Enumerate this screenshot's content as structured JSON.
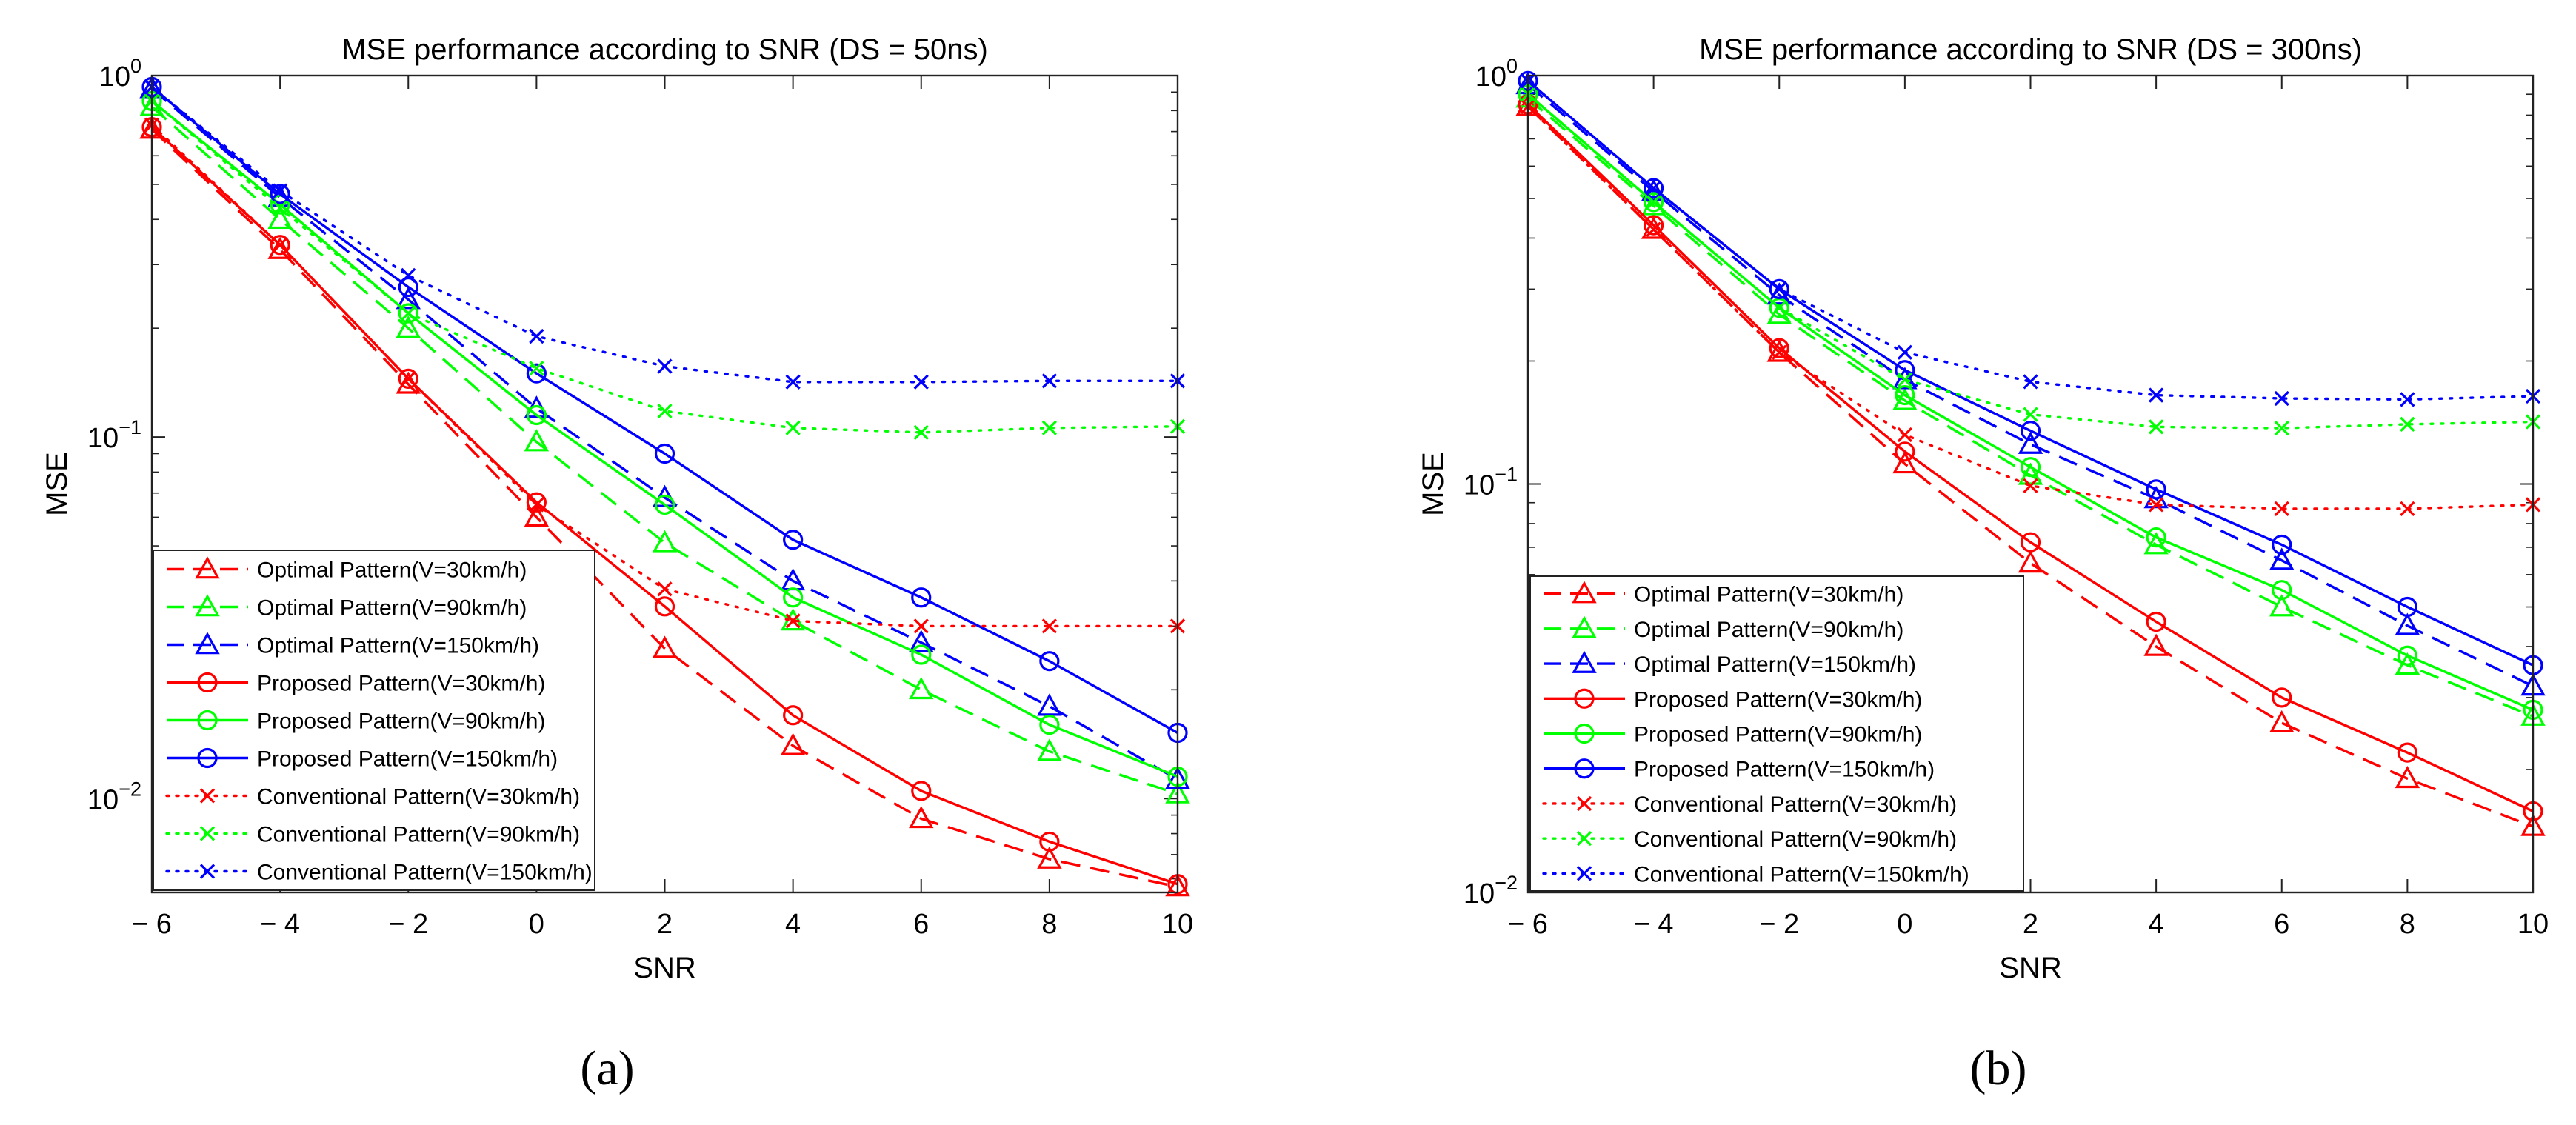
{
  "figure": {
    "caption_a": "(a)",
    "caption_b": "(b)"
  },
  "chart_data": [
    {
      "type": "line",
      "yscale": "log",
      "title": "MSE performance according to SNR (DS = 50ns)",
      "xlabel": "SNR",
      "ylabel": "MSE",
      "xlim": [
        -6,
        10
      ],
      "ylim": [
        0.0055,
        1
      ],
      "xticks": [
        -6,
        -4,
        -2,
        0,
        2,
        4,
        6,
        8,
        10
      ],
      "xtick_labels": [
        "− 6",
        "− 4",
        "− 2",
        "0",
        "2",
        "4",
        "6",
        "8",
        "10"
      ],
      "yticks": [
        {
          "value": 1,
          "base": "10",
          "exp": "0"
        },
        {
          "value": 0.1,
          "base": "10",
          "exp": "−1"
        },
        {
          "value": 0.01,
          "base": "10",
          "exp": "−2"
        }
      ],
      "legend_position": "bottom-left",
      "x": [
        -6,
        -4,
        -2,
        0,
        2,
        4,
        6,
        8,
        10
      ],
      "series": [
        {
          "name": "Optimal Pattern(V=30km/h)",
          "color": "#ff0000",
          "dash": "dashed",
          "marker": "triangle",
          "values": [
            0.71,
            0.33,
            0.14,
            0.06,
            0.026,
            0.014,
            0.0088,
            0.0068,
            0.0057
          ]
        },
        {
          "name": "Optimal Pattern(V=90km/h)",
          "color": "#00ff00",
          "dash": "dashed",
          "marker": "triangle",
          "values": [
            0.82,
            0.4,
            0.2,
            0.097,
            0.051,
            0.031,
            0.02,
            0.0135,
            0.0103
          ]
        },
        {
          "name": "Optimal Pattern(V=150km/h)",
          "color": "#0000ff",
          "dash": "dashed",
          "marker": "triangle",
          "values": [
            0.92,
            0.46,
            0.24,
            0.12,
            0.068,
            0.04,
            0.027,
            0.018,
            0.0113
          ]
        },
        {
          "name": "Proposed Pattern(V=30km/h)",
          "color": "#ff0000",
          "dash": "solid",
          "marker": "circle",
          "values": [
            0.72,
            0.34,
            0.145,
            0.066,
            0.034,
            0.017,
            0.0105,
            0.0076,
            0.0058
          ]
        },
        {
          "name": "Proposed Pattern(V=90km/h)",
          "color": "#00ff00",
          "dash": "solid",
          "marker": "circle",
          "values": [
            0.85,
            0.44,
            0.22,
            0.115,
            0.065,
            0.036,
            0.025,
            0.016,
            0.0115
          ]
        },
        {
          "name": "Proposed Pattern(V=150km/h)",
          "color": "#0000ff",
          "dash": "solid",
          "marker": "circle",
          "values": [
            0.93,
            0.47,
            0.26,
            0.15,
            0.09,
            0.052,
            0.036,
            0.024,
            0.0152
          ]
        },
        {
          "name": "Conventional Pattern(V=30km/h)",
          "color": "#ff0000",
          "dash": "dotted",
          "marker": "x",
          "values": [
            0.73,
            0.34,
            0.145,
            0.065,
            0.038,
            0.031,
            0.03,
            0.03,
            0.03
          ]
        },
        {
          "name": "Conventional Pattern(V=90km/h)",
          "color": "#00ff00",
          "dash": "dotted",
          "marker": "x",
          "values": [
            0.85,
            0.43,
            0.22,
            0.155,
            0.118,
            0.106,
            0.103,
            0.106,
            0.107
          ]
        },
        {
          "name": "Conventional Pattern(V=150km/h)",
          "color": "#0000ff",
          "dash": "dotted",
          "marker": "x",
          "values": [
            0.93,
            0.48,
            0.28,
            0.19,
            0.157,
            0.142,
            0.142,
            0.143,
            0.143
          ]
        }
      ]
    },
    {
      "type": "line",
      "yscale": "log",
      "title": "MSE performance according to SNR (DS = 300ns)",
      "xlabel": "SNR",
      "ylabel": "MSE",
      "xlim": [
        -6,
        10
      ],
      "ylim": [
        0.01,
        1
      ],
      "xticks": [
        -6,
        -4,
        -2,
        0,
        2,
        4,
        6,
        8,
        10
      ],
      "xtick_labels": [
        "− 6",
        "− 4",
        "− 2",
        "0",
        "2",
        "4",
        "6",
        "8",
        "10"
      ],
      "yticks": [
        {
          "value": 1,
          "base": "10",
          "exp": "0"
        },
        {
          "value": 0.1,
          "base": "10",
          "exp": "−1"
        },
        {
          "value": 0.01,
          "base": "10",
          "exp": "−2"
        }
      ],
      "legend_position": "bottom-left",
      "x": [
        -6,
        -4,
        -2,
        0,
        2,
        4,
        6,
        8,
        10
      ],
      "series": [
        {
          "name": "Optimal Pattern(V=30km/h)",
          "color": "#ff0000",
          "dash": "dashed",
          "marker": "triangle",
          "values": [
            0.84,
            0.42,
            0.21,
            0.112,
            0.064,
            0.04,
            0.026,
            0.019,
            0.0145
          ]
        },
        {
          "name": "Optimal Pattern(V=90km/h)",
          "color": "#00ff00",
          "dash": "dashed",
          "marker": "triangle",
          "values": [
            0.88,
            0.48,
            0.26,
            0.16,
            0.105,
            0.071,
            0.05,
            0.036,
            0.027
          ]
        },
        {
          "name": "Optimal Pattern(V=150km/h)",
          "color": "#0000ff",
          "dash": "dashed",
          "marker": "triangle",
          "values": [
            0.95,
            0.52,
            0.29,
            0.18,
            0.125,
            0.092,
            0.065,
            0.045,
            0.032
          ]
        },
        {
          "name": "Proposed Pattern(V=30km/h)",
          "color": "#ff0000",
          "dash": "solid",
          "marker": "circle",
          "values": [
            0.85,
            0.43,
            0.215,
            0.12,
            0.072,
            0.046,
            0.03,
            0.022,
            0.0158
          ]
        },
        {
          "name": "Proposed Pattern(V=90km/h)",
          "color": "#00ff00",
          "dash": "solid",
          "marker": "circle",
          "values": [
            0.9,
            0.49,
            0.27,
            0.165,
            0.11,
            0.074,
            0.055,
            0.038,
            0.028
          ]
        },
        {
          "name": "Proposed Pattern(V=150km/h)",
          "color": "#0000ff",
          "dash": "solid",
          "marker": "circle",
          "values": [
            0.97,
            0.53,
            0.3,
            0.19,
            0.135,
            0.097,
            0.071,
            0.05,
            0.036
          ]
        },
        {
          "name": "Conventional Pattern(V=30km/h)",
          "color": "#ff0000",
          "dash": "dotted",
          "marker": "x",
          "values": [
            0.84,
            0.42,
            0.21,
            0.132,
            0.099,
            0.089,
            0.087,
            0.087,
            0.089
          ]
        },
        {
          "name": "Conventional Pattern(V=90km/h)",
          "color": "#00ff00",
          "dash": "dotted",
          "marker": "x",
          "values": [
            0.9,
            0.49,
            0.27,
            0.18,
            0.148,
            0.138,
            0.137,
            0.14,
            0.142
          ]
        },
        {
          "name": "Conventional Pattern(V=150km/h)",
          "color": "#0000ff",
          "dash": "dotted",
          "marker": "x",
          "values": [
            0.97,
            0.53,
            0.3,
            0.21,
            0.178,
            0.165,
            0.162,
            0.161,
            0.164
          ]
        }
      ]
    }
  ]
}
